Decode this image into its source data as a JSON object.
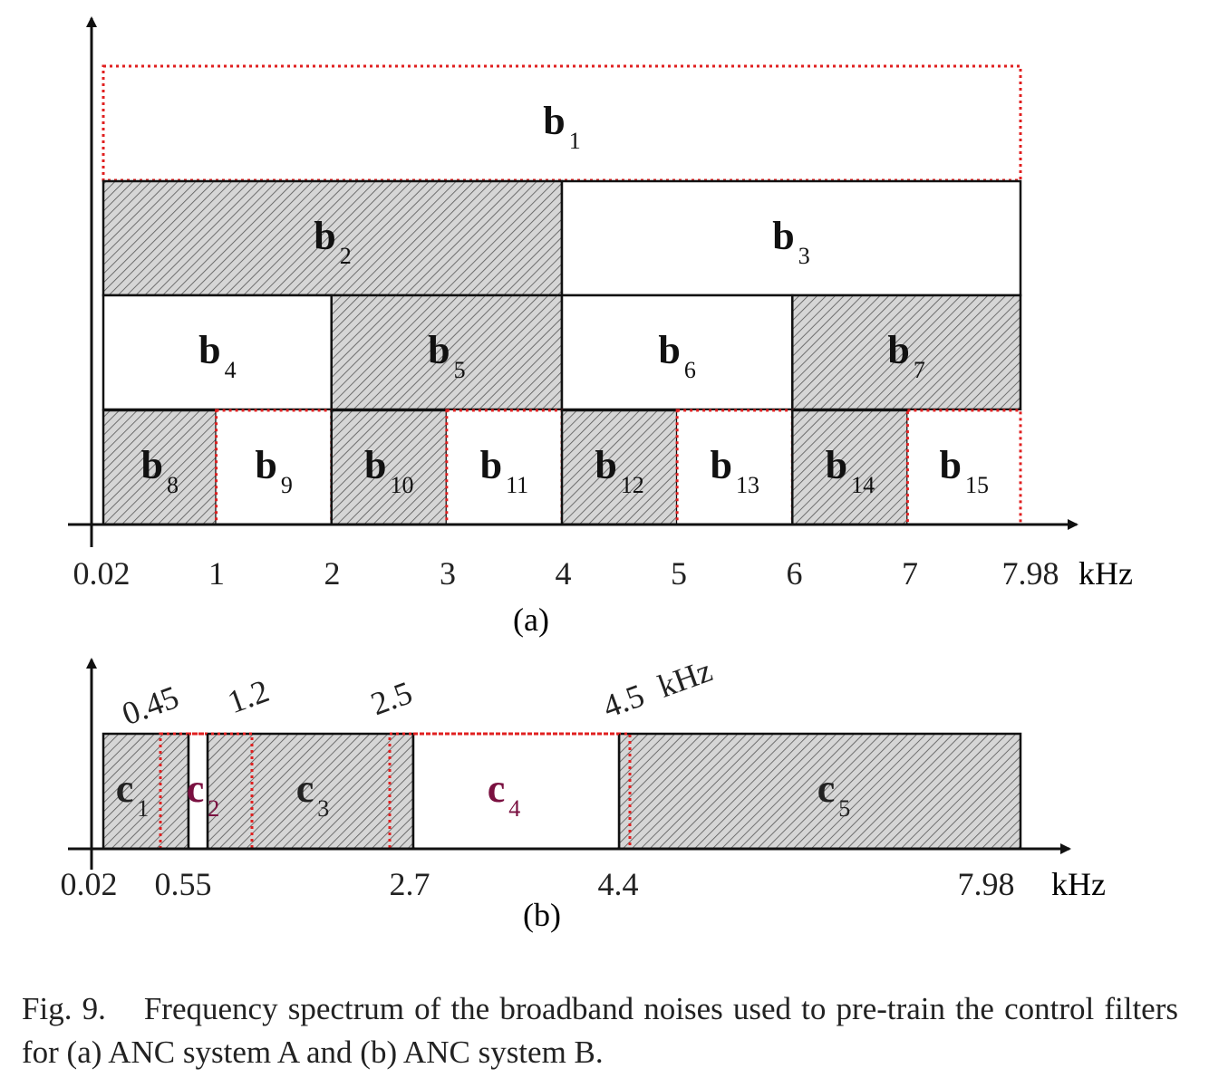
{
  "figure": {
    "panel_a": {
      "label": "(a)",
      "unit": "kHz",
      "ticks": [
        "0.02",
        "1",
        "2",
        "3",
        "4",
        "5",
        "6",
        "7",
        "7.98"
      ],
      "bands": [
        {
          "name": "b",
          "sub": "1",
          "start": 0.02,
          "end": 7.98,
          "row": 0,
          "hatched": false,
          "dotted": true
        },
        {
          "name": "b",
          "sub": "2",
          "start": 0.02,
          "end": 4,
          "row": 1,
          "hatched": true,
          "dotted": false
        },
        {
          "name": "b",
          "sub": "3",
          "start": 4,
          "end": 7.98,
          "row": 1,
          "hatched": false,
          "dotted": false
        },
        {
          "name": "b",
          "sub": "4",
          "start": 0.02,
          "end": 2,
          "row": 2,
          "hatched": false,
          "dotted": false
        },
        {
          "name": "b",
          "sub": "5",
          "start": 2,
          "end": 4,
          "row": 2,
          "hatched": true,
          "dotted": false
        },
        {
          "name": "b",
          "sub": "6",
          "start": 4,
          "end": 6,
          "row": 2,
          "hatched": false,
          "dotted": false
        },
        {
          "name": "b",
          "sub": "7",
          "start": 6,
          "end": 7.98,
          "row": 2,
          "hatched": true,
          "dotted": false
        },
        {
          "name": "b",
          "sub": "8",
          "start": 0.02,
          "end": 1,
          "row": 3,
          "hatched": true,
          "dotted": false
        },
        {
          "name": "b",
          "sub": "9",
          "start": 1,
          "end": 2,
          "row": 3,
          "hatched": false,
          "dotted": true
        },
        {
          "name": "b",
          "sub": "10",
          "start": 2,
          "end": 3,
          "row": 3,
          "hatched": true,
          "dotted": false
        },
        {
          "name": "b",
          "sub": "11",
          "start": 3,
          "end": 4,
          "row": 3,
          "hatched": false,
          "dotted": true
        },
        {
          "name": "b",
          "sub": "12",
          "start": 4,
          "end": 5,
          "row": 3,
          "hatched": true,
          "dotted": false
        },
        {
          "name": "b",
          "sub": "13",
          "start": 5,
          "end": 6,
          "row": 3,
          "hatched": false,
          "dotted": true
        },
        {
          "name": "b",
          "sub": "14",
          "start": 6,
          "end": 7,
          "row": 3,
          "hatched": true,
          "dotted": false
        },
        {
          "name": "b",
          "sub": "15",
          "start": 7,
          "end": 7.98,
          "row": 3,
          "hatched": false,
          "dotted": true
        }
      ]
    },
    "panel_b": {
      "label": "(b)",
      "unit": "kHz",
      "bottom_ticks": [
        "0.02",
        "0.55",
        "2.7",
        "4.4",
        "7.98"
      ],
      "top_ticks": [
        "0.45",
        "1.2",
        "2.5",
        "4.5"
      ],
      "top_unit": "kHz",
      "bands": [
        {
          "name": "c",
          "sub": "1",
          "start": 0.02,
          "end": 0.55,
          "hatched": true,
          "dotted": false,
          "color": "#222222"
        },
        {
          "name": "c",
          "sub": "2",
          "start": 0.45,
          "end": 1.2,
          "hatched": false,
          "dotted": true,
          "color": "#7a1040"
        },
        {
          "name": "c",
          "sub": "3",
          "start": 0.55,
          "end": 2.7,
          "hatched": true,
          "dotted": false,
          "color": "#222222"
        },
        {
          "name": "c",
          "sub": "4",
          "start": 2.5,
          "end": 4.5,
          "hatched": false,
          "dotted": true,
          "color": "#7a1040"
        },
        {
          "name": "c",
          "sub": "5",
          "start": 4.4,
          "end": 7.98,
          "hatched": true,
          "dotted": false,
          "color": "#222222"
        }
      ]
    },
    "colors": {
      "dotted_border": "#e02020",
      "accent_label": "#7a1040",
      "line": "#111111"
    }
  },
  "caption": {
    "number": "Fig. 9.",
    "text": "Frequency spectrum of the broadband noises used to pre-train the control filters for (a) ANC system A and (b) ANC system B."
  }
}
